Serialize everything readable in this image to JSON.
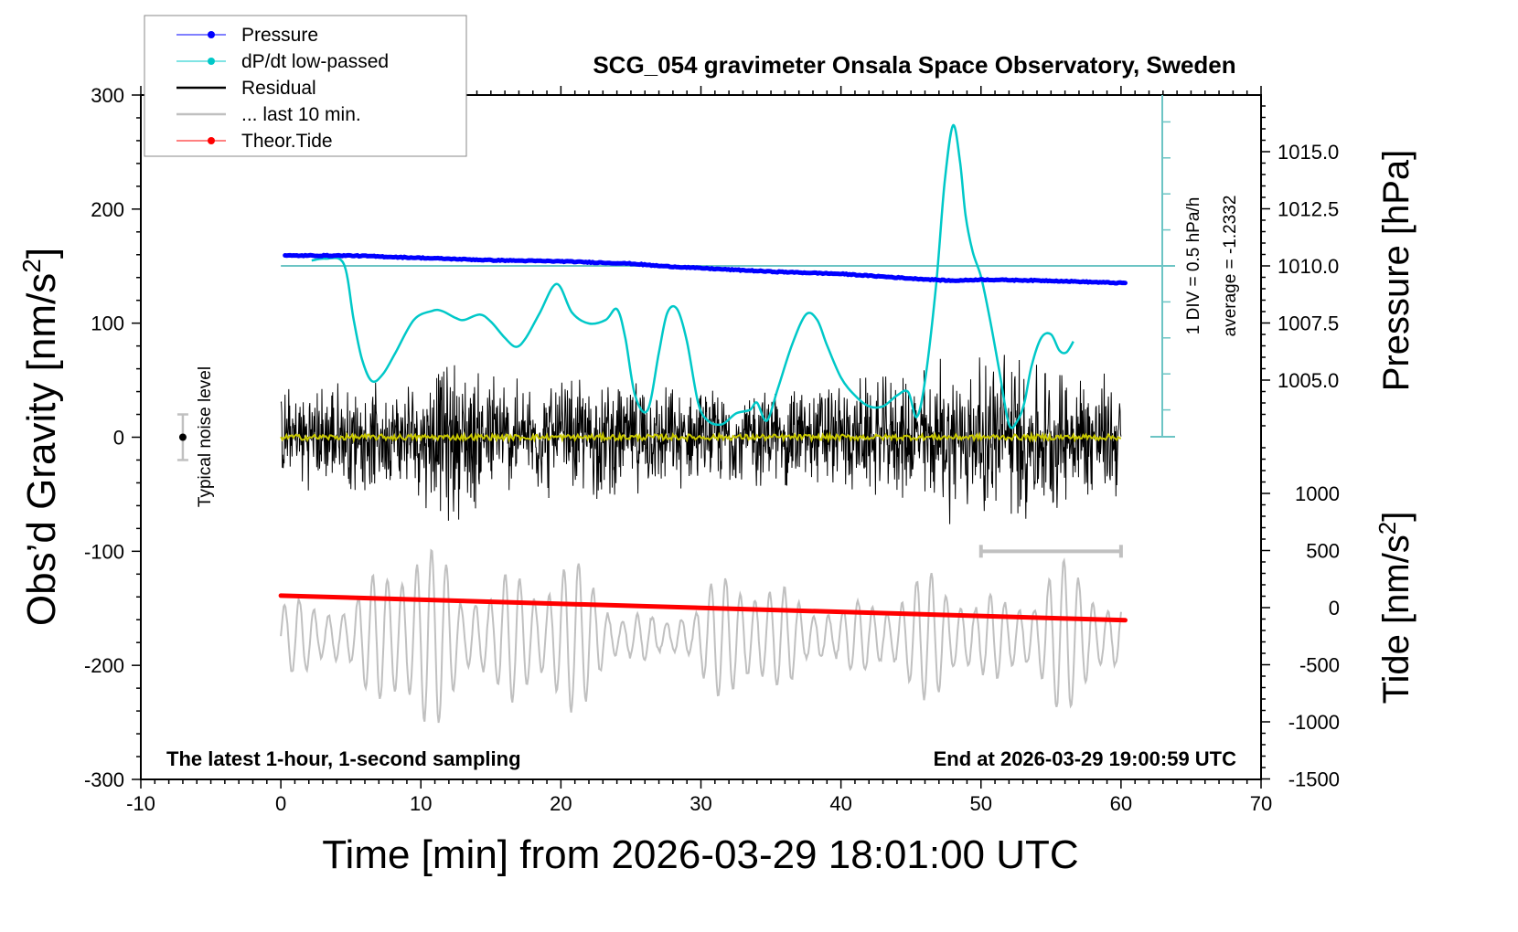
{
  "chart_data": {
    "type": "line",
    "title": "SCG_054 gravimeter Onsala Space Observatory, Sweden",
    "xlabel": "Time [min] from 2026-03-29 18:01:00 UTC",
    "ylabel_left": "Obs’d Gravity [nm/s",
    "ylabel_left_sup": "2",
    "ylabel_left_close": "]",
    "ylabel_right_pressure": "Pressure [hPa]",
    "ylabel_right_tide": "Tide [nm/s",
    "ylabel_right_tide_sup": "2",
    "ylabel_right_tide_close": "]",
    "xlim": [
      -10,
      70
    ],
    "ylim_left": [
      -300,
      300
    ],
    "pressure_range": [
      1002.5,
      1017.5
    ],
    "tide_range": [
      -1500,
      1000
    ],
    "x_ticks": [
      -10,
      0,
      10,
      20,
      30,
      40,
      50,
      60,
      70
    ],
    "y_ticks_left": [
      300,
      200,
      100,
      0,
      -100,
      -200,
      -300
    ],
    "pressure_ticks": [
      "1015.0",
      "1012.5",
      "1010.0",
      "1007.5",
      "1005.0"
    ],
    "tide_ticks": [
      1000,
      500,
      0,
      -500,
      -1000,
      -1500
    ],
    "legend": {
      "placement": "top-left",
      "entries": [
        {
          "label": "Pressure",
          "color": "#0000ff",
          "marker": true
        },
        {
          "label": "dP/dt low-passed",
          "color": "#00c8c8",
          "marker": true
        },
        {
          "label": "Residual",
          "color": "#000000",
          "marker": false
        },
        {
          "label": "... last 10 min.",
          "color": "#c0c0c0",
          "marker": false
        },
        {
          "label": "Theor.Tide",
          "color": "#ff0000",
          "marker": true
        }
      ]
    },
    "annotations": {
      "bottom_left": "The latest 1-hour, 1-second sampling",
      "bottom_right": "End at 2026-03-29 19:00:59 UTC",
      "noise_label": "Typical noise level",
      "dpdt_scale": "1 DIV = 0.5 hPa/h",
      "dpdt_average": "average = -1.2332"
    },
    "noise_level": {
      "x": -7,
      "center": 0,
      "halfwidth": 20
    },
    "last10_bar": {
      "x_start": 50,
      "x_end": 60,
      "y": -100
    },
    "series": [
      {
        "name": "Pressure",
        "axis": "pressure",
        "color": "#0000ff",
        "x": [
          0,
          5,
          10,
          15,
          20,
          25,
          27,
          30,
          35,
          40,
          45,
          48,
          50,
          55,
          60
        ],
        "values": [
          1010.45,
          1010.45,
          1010.35,
          1010.25,
          1010.2,
          1010.1,
          1010.0,
          1009.9,
          1009.75,
          1009.65,
          1009.45,
          1009.35,
          1009.4,
          1009.35,
          1009.25
        ]
      },
      {
        "name": "dP/dt low-passed",
        "axis": "dpdt_div",
        "color": "#00c8c8",
        "x": [
          2.2,
          3.2,
          4.5,
          5.2,
          5.8,
          6.5,
          7.3,
          8.2,
          9.5,
          10.8,
          11.5,
          12.5,
          13.1,
          14.2,
          15.0,
          16.0,
          16.8,
          17.5,
          18.5,
          19.7,
          20.8,
          22.0,
          23.2,
          24.0,
          24.6,
          25.3,
          26.2,
          27.0,
          27.6,
          28.3,
          29.0,
          29.8,
          30.5,
          31.5,
          32.5,
          33.5,
          34.0,
          34.7,
          35.5,
          36.5,
          37.5,
          38.3,
          39.0,
          40.0,
          41.0,
          42.0,
          43.0,
          44.0,
          44.8,
          45.4,
          46.0,
          46.8,
          47.4,
          48.0,
          48.5,
          48.9,
          49.4,
          50.0,
          50.6,
          51.3,
          52.0,
          52.6,
          53.1,
          53.6,
          54.3,
          55.0,
          55.6,
          56.1,
          56.6
        ],
        "values": [
          0.15,
          0.2,
          0.05,
          -1.5,
          -2.6,
          -3.2,
          -3.0,
          -2.4,
          -1.5,
          -1.25,
          -1.25,
          -1.45,
          -1.5,
          -1.35,
          -1.55,
          -2.0,
          -2.25,
          -2.0,
          -1.3,
          -0.5,
          -1.3,
          -1.6,
          -1.5,
          -1.2,
          -2.0,
          -3.6,
          -4.0,
          -2.4,
          -1.3,
          -1.2,
          -2.1,
          -3.8,
          -4.3,
          -4.4,
          -4.1,
          -4.0,
          -3.8,
          -4.3,
          -3.4,
          -2.2,
          -1.35,
          -1.5,
          -2.2,
          -3.1,
          -3.6,
          -3.9,
          -3.9,
          -3.6,
          -3.5,
          -4.2,
          -3.2,
          -0.5,
          2.3,
          3.9,
          2.9,
          1.4,
          0.4,
          -0.3,
          -1.4,
          -2.9,
          -4.4,
          -4.3,
          -3.8,
          -2.8,
          -2.0,
          -1.9,
          -2.35,
          -2.4,
          -2.1
        ]
      },
      {
        "name": "Residual",
        "axis": "left",
        "color": "#000000",
        "x_range": [
          0,
          60
        ],
        "envelope": [
          {
            "x": 0,
            "amp": 45
          },
          {
            "x": 5,
            "amp": 55
          },
          {
            "x": 8,
            "amp": 45
          },
          {
            "x": 12,
            "amp": 80
          },
          {
            "x": 17,
            "amp": 55
          },
          {
            "x": 22,
            "amp": 60
          },
          {
            "x": 30,
            "amp": 45
          },
          {
            "x": 35,
            "amp": 50
          },
          {
            "x": 40,
            "amp": 55
          },
          {
            "x": 45,
            "amp": 60
          },
          {
            "x": 47,
            "amp": 80
          },
          {
            "x": 50,
            "amp": 75
          },
          {
            "x": 52,
            "amp": 90
          },
          {
            "x": 55,
            "amp": 70
          },
          {
            "x": 60,
            "amp": 60
          }
        ]
      },
      {
        "name": "... last 10 min.",
        "axis": "left",
        "color": "#c0c0c0",
        "x_range": [
          0,
          60
        ],
        "baseline": -175,
        "envelope": [
          {
            "x": 0,
            "amp": 45
          },
          {
            "x": 4,
            "amp": 55
          },
          {
            "x": 7,
            "amp": 70
          },
          {
            "x": 10,
            "amp": 95
          },
          {
            "x": 13,
            "amp": 70
          },
          {
            "x": 16,
            "amp": 100
          },
          {
            "x": 20,
            "amp": 75
          },
          {
            "x": 24,
            "amp": 40
          },
          {
            "x": 27,
            "amp": 30
          },
          {
            "x": 31,
            "amp": 60
          },
          {
            "x": 36,
            "amp": 55
          },
          {
            "x": 40,
            "amp": 50
          },
          {
            "x": 44,
            "amp": 40
          },
          {
            "x": 48,
            "amp": 75
          },
          {
            "x": 52,
            "amp": 65
          },
          {
            "x": 56,
            "amp": 70
          },
          {
            "x": 60,
            "amp": 40
          }
        ]
      },
      {
        "name": "Zero line",
        "axis": "left",
        "color": "#c8c800",
        "x_range": [
          0,
          60
        ],
        "values": [
          0,
          0
        ]
      },
      {
        "name": "Theor.Tide",
        "axis": "tide",
        "color": "#ff0000",
        "x": [
          0,
          60.3
        ],
        "values": [
          105,
          -110
        ]
      }
    ]
  }
}
